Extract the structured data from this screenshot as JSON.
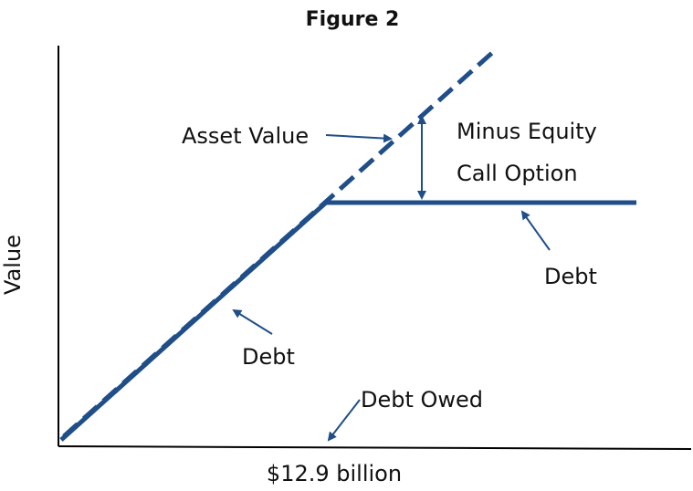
{
  "title": "Figure 2",
  "y_axis_label": "Value",
  "x_tick_label": "$12.9 billion",
  "labels": {
    "asset_value": "Asset Value",
    "minus_equity_line1": "Minus Equity",
    "minus_equity_line2": "Call Option",
    "debt_right": "Debt",
    "debt_left": "Debt",
    "debt_owed": "Debt Owed"
  },
  "colors": {
    "line": "#1f4e89",
    "axis": "#000000",
    "text": "#111111"
  }
}
